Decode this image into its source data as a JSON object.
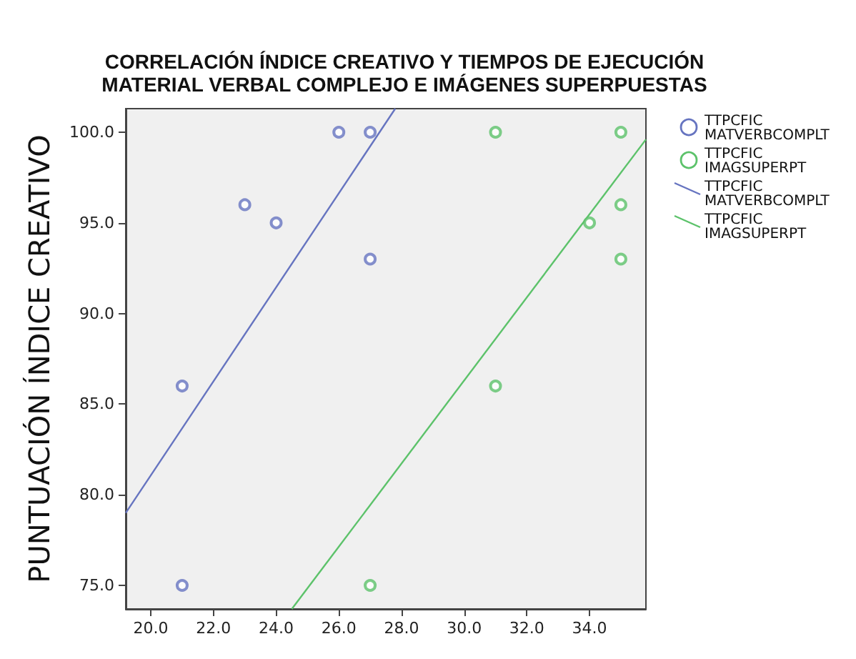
{
  "chart_data": {
    "type": "scatter",
    "title": "CORRELACIÓN ÍNDICE CREATIVO Y TIEMPOS DE EJECUCIÓN\nMATERIAL VERBAL COMPLEJO E IMÁGENES SUPERPUESTAS",
    "ylabel": "PUNTUACIÓN ÍNDICE CREATIVO",
    "marker": "circle",
    "grid": false,
    "legend": "right",
    "xlim": [
      19.2,
      35.8
    ],
    "ylim": [
      73.7,
      101.3
    ],
    "xticks": [
      {
        "value": 20,
        "label": "20.0"
      },
      {
        "value": 22,
        "label": "22.0"
      },
      {
        "value": 24,
        "label": "24.0"
      },
      {
        "value": 26,
        "label": "26.0"
      },
      {
        "value": 28,
        "label": "28.0"
      },
      {
        "value": 30,
        "label": "30.0"
      },
      {
        "value": 32,
        "label": "32.0"
      },
      {
        "value": 34,
        "label": "34.0"
      }
    ],
    "yticks": [
      {
        "value": 75,
        "label": "75.0"
      },
      {
        "value": 80,
        "label": "80.0"
      },
      {
        "value": 85,
        "label": "85.0"
      },
      {
        "value": 90,
        "label": "90.0"
      },
      {
        "value": 95,
        "label": "95.0"
      },
      {
        "value": 100,
        "label": "100.0"
      }
    ],
    "series": [
      {
        "name": "TTPCFIC\nMATVERBCOMPLT",
        "color": "#6674c0",
        "x": [
          21,
          21,
          23,
          24,
          26,
          27,
          27
        ],
        "values": [
          86,
          75,
          96,
          95,
          100,
          100,
          93
        ]
      },
      {
        "name": "TTPCFIC\nIMAGSUPERPT",
        "color": "#5cc26a",
        "x": [
          27,
          31,
          31,
          34,
          35,
          35,
          35
        ],
        "values": [
          75,
          100,
          86,
          95,
          100,
          96,
          93
        ]
      },
      {
        "name": "TTPCFIC\nMATVERBCOMPLT",
        "type": "line",
        "marker": "none",
        "color": "#6674c0",
        "x": [
          19.2,
          27.8
        ],
        "values": [
          79,
          101.3
        ]
      },
      {
        "name": "TTPCFIC\nIMAGSUPERPT",
        "type": "line",
        "marker": "none",
        "color": "#5cc26a",
        "x": [
          24.5,
          35.8
        ],
        "values": [
          73.7,
          99.6
        ]
      }
    ]
  }
}
